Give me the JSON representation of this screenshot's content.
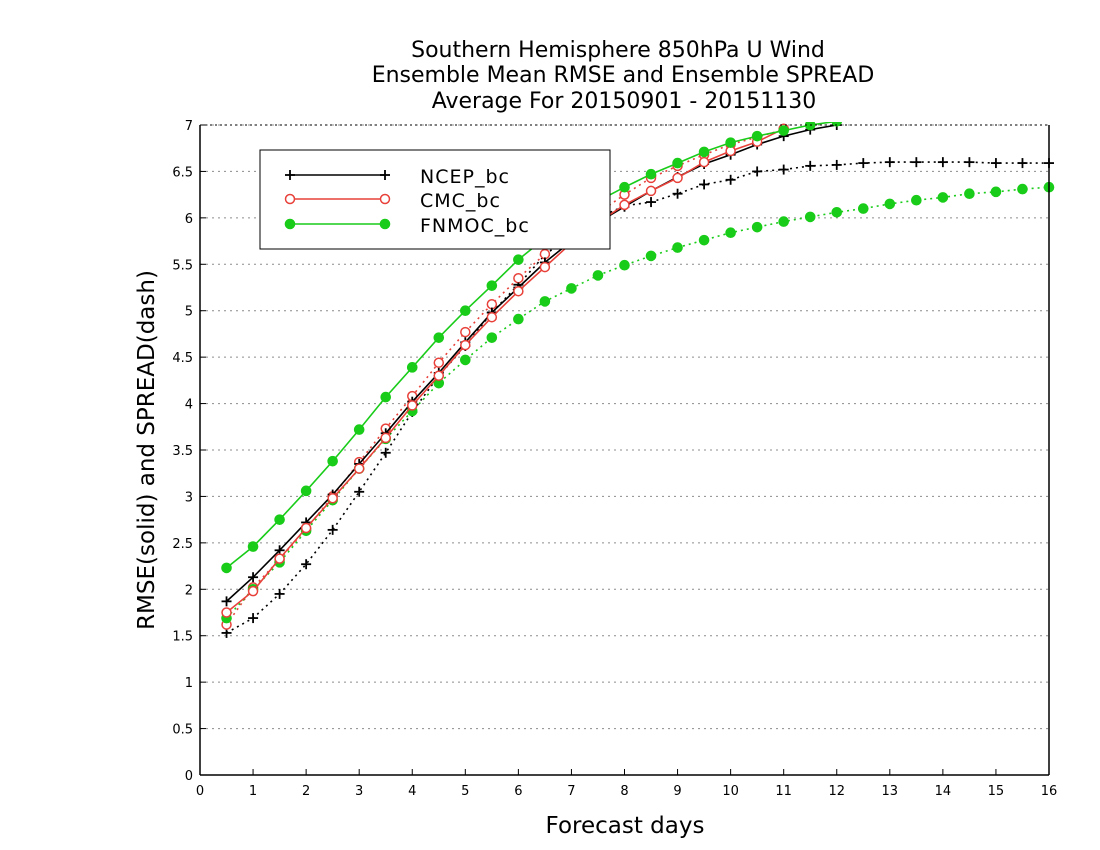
{
  "chart_data": {
    "type": "line",
    "title": [
      "Southern Hemisphere 850hPa U Wind",
      "Ensemble Mean RMSE and Ensemble SPREAD",
      "Average For 20150901 - 20151130"
    ],
    "xlabel": "Forecast days",
    "ylabel": "RMSE(solid) and SPREAD(dash)",
    "xlim": [
      0,
      16
    ],
    "ylim": [
      0,
      7
    ],
    "xticks": [
      0,
      1,
      2,
      3,
      4,
      5,
      6,
      7,
      8,
      9,
      10,
      11,
      12,
      13,
      14,
      15,
      16
    ],
    "yticks": [
      0,
      0.5,
      1,
      1.5,
      2,
      2.5,
      3,
      3.5,
      4,
      4.5,
      5,
      5.5,
      6,
      6.5,
      7
    ],
    "ytick_labels": [
      "0",
      "0.5",
      "1",
      "1.5",
      "2",
      "2.5",
      "3",
      "3.5",
      "4",
      "4.5",
      "5",
      "5.5",
      "6",
      "6.5",
      "7"
    ],
    "grid": "horizontal-dotted",
    "legend": {
      "placement": "top-left",
      "entries": [
        "NCEP_bc",
        "CMC_bc",
        "FNMOC_bc"
      ]
    },
    "series": [
      {
        "name": "NCEP_bc",
        "kind": "RMSE",
        "style": "solid",
        "color": "#000000",
        "marker": "plus",
        "x": [
          0.5,
          1,
          1.5,
          2,
          2.5,
          3,
          3.5,
          4,
          4.5,
          5,
          5.5,
          6,
          6.5,
          7,
          7.5,
          8,
          8.5,
          9,
          9.5,
          10,
          10.5,
          11,
          11.5,
          12
        ],
        "y": [
          1.87,
          2.13,
          2.42,
          2.72,
          3.02,
          3.35,
          3.68,
          4.02,
          4.33,
          4.66,
          4.98,
          5.25,
          5.52,
          5.75,
          5.95,
          6.12,
          6.29,
          6.44,
          6.58,
          6.68,
          6.79,
          6.88,
          6.95,
          7.0
        ]
      },
      {
        "name": "NCEP_bc",
        "kind": "SPREAD",
        "style": "dash",
        "color": "#000000",
        "marker": "plus",
        "x": [
          0.5,
          1,
          1.5,
          2,
          2.5,
          3,
          3.5,
          4,
          4.5,
          5,
          5.5,
          6,
          6.5,
          7,
          7.5,
          8,
          8.5,
          9,
          9.5,
          10,
          10.5,
          11,
          11.5,
          12,
          12.5,
          13,
          13.5,
          14,
          14.5,
          15,
          15.5,
          16
        ],
        "y": [
          1.53,
          1.69,
          1.95,
          2.27,
          2.64,
          3.05,
          3.47,
          3.91,
          4.3,
          4.62,
          4.98,
          5.28,
          5.6,
          5.82,
          6.0,
          6.13,
          6.17,
          6.26,
          6.36,
          6.41,
          6.5,
          6.52,
          6.56,
          6.57,
          6.59,
          6.6,
          6.6,
          6.6,
          6.6,
          6.59,
          6.59,
          6.59
        ]
      },
      {
        "name": "CMC_bc",
        "kind": "RMSE",
        "style": "solid",
        "color": "#e8413a",
        "marker": "open-circle",
        "x": [
          0.5,
          1,
          1.5,
          2,
          2.5,
          3,
          3.5,
          4,
          4.5,
          5,
          5.5,
          6,
          6.5,
          7,
          7.5,
          8,
          8.5,
          9,
          9.5,
          10,
          10.5,
          11
        ],
        "y": [
          1.75,
          1.98,
          2.33,
          2.66,
          2.98,
          3.3,
          3.63,
          3.98,
          4.3,
          4.63,
          4.93,
          5.21,
          5.47,
          5.73,
          5.95,
          6.14,
          6.29,
          6.43,
          6.6,
          6.72,
          6.82,
          6.96
        ]
      },
      {
        "name": "CMC_bc",
        "kind": "SPREAD",
        "style": "dash",
        "color": "#e8413a",
        "marker": "open-circle",
        "x": [
          0.5,
          1,
          1.5,
          2,
          2.5,
          3,
          3.5,
          4,
          4.5,
          5,
          5.5,
          6,
          6.5,
          7,
          7.5,
          8,
          8.5,
          9,
          9.5,
          10,
          10.5,
          11
        ],
        "y": [
          1.62,
          2.02,
          2.32,
          2.65,
          3.0,
          3.37,
          3.73,
          4.08,
          4.44,
          4.77,
          5.07,
          5.35,
          5.61,
          5.85,
          6.05,
          6.25,
          6.43,
          6.56,
          6.68,
          6.79,
          6.87,
          6.95
        ]
      },
      {
        "name": "FNMOC_bc",
        "kind": "RMSE",
        "style": "solid",
        "color": "#19cc19",
        "marker": "filled-circle",
        "x": [
          0.5,
          1,
          1.5,
          2,
          2.5,
          3,
          3.5,
          4,
          4.5,
          5,
          5.5,
          6,
          6.5,
          7,
          7.5,
          8,
          8.5,
          9,
          9.5,
          10,
          10.5,
          11,
          11.5,
          12
        ],
        "y": [
          2.23,
          2.46,
          2.75,
          3.06,
          3.38,
          3.72,
          4.07,
          4.39,
          4.71,
          5.0,
          5.27,
          5.55,
          5.78,
          5.99,
          6.18,
          6.33,
          6.47,
          6.59,
          6.71,
          6.81,
          6.88,
          6.94,
          7.0,
          7.04
        ]
      },
      {
        "name": "FNMOC_bc",
        "kind": "SPREAD",
        "style": "dash",
        "color": "#19cc19",
        "marker": "filled-circle",
        "x": [
          0.5,
          1,
          1.5,
          2,
          2.5,
          3,
          3.5,
          4,
          4.5,
          5,
          5.5,
          6,
          6.5,
          7,
          7.5,
          8,
          8.5,
          9,
          9.5,
          10,
          10.5,
          11,
          11.5,
          12,
          12.5,
          13,
          13.5,
          14,
          14.5,
          15,
          15.5,
          16
        ],
        "y": [
          1.69,
          2.0,
          2.29,
          2.63,
          2.96,
          3.3,
          3.62,
          3.92,
          4.22,
          4.47,
          4.71,
          4.91,
          5.1,
          5.24,
          5.38,
          5.49,
          5.59,
          5.68,
          5.76,
          5.84,
          5.9,
          5.96,
          6.01,
          6.06,
          6.1,
          6.15,
          6.19,
          6.22,
          6.26,
          6.28,
          6.31,
          6.33
        ]
      }
    ]
  }
}
